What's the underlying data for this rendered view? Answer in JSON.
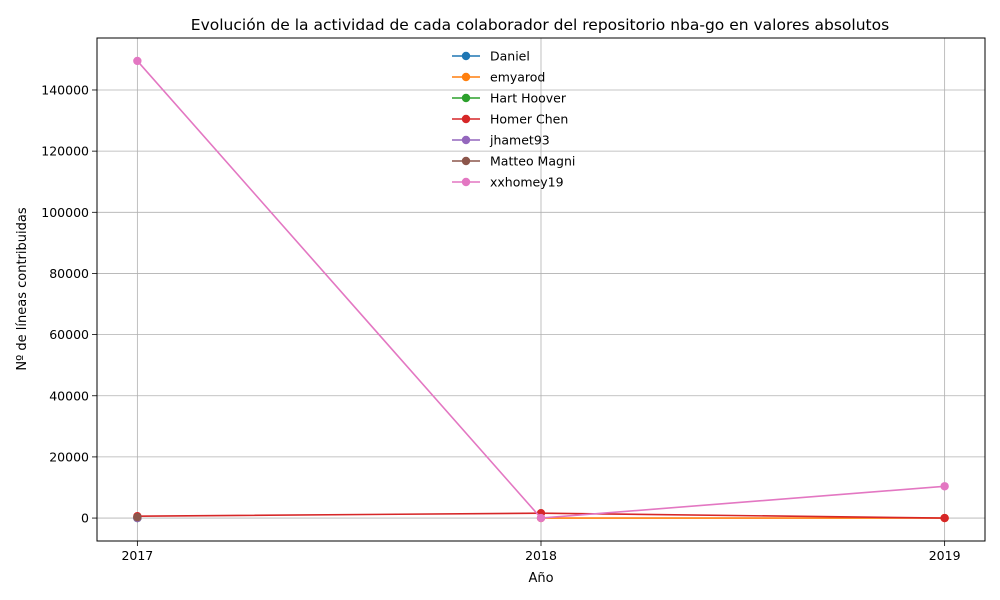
{
  "chart_data": {
    "type": "line",
    "title": "Evolución de la actividad de cada colaborador del repositorio nba-go en valores absolutos",
    "xlabel": "Año",
    "ylabel": "Nº de líneas contribuidas",
    "x": [
      2017,
      2018,
      2019
    ],
    "xlim": [
      2016.9,
      2019.1
    ],
    "ylim": [
      -7500,
      157000
    ],
    "yticks": [
      0,
      20000,
      40000,
      60000,
      80000,
      100000,
      120000,
      140000
    ],
    "grid": true,
    "legend_position": "top-center",
    "series": [
      {
        "name": "Daniel",
        "color": "#1f77b4",
        "points": [
          [
            2017,
            0
          ]
        ]
      },
      {
        "name": "emyarod",
        "color": "#ff7f0e",
        "points": [
          [
            2018,
            0
          ],
          [
            2019,
            0
          ]
        ]
      },
      {
        "name": "Hart Hoover",
        "color": "#2ca02c",
        "points": [
          [
            2017,
            0
          ]
        ]
      },
      {
        "name": "Homer Chen",
        "color": "#d62728",
        "points": [
          [
            2017,
            600
          ],
          [
            2018,
            1600
          ],
          [
            2019,
            0
          ]
        ]
      },
      {
        "name": "jhamet93",
        "color": "#9467bd",
        "points": [
          [
            2017,
            0
          ]
        ]
      },
      {
        "name": "Matteo Magni",
        "color": "#8c564b",
        "points": [
          [
            2017,
            300
          ]
        ]
      },
      {
        "name": "xxhomey19",
        "color": "#e377c2",
        "points": [
          [
            2017,
            149500
          ],
          [
            2018,
            0
          ],
          [
            2019,
            10400
          ]
        ]
      }
    ]
  }
}
